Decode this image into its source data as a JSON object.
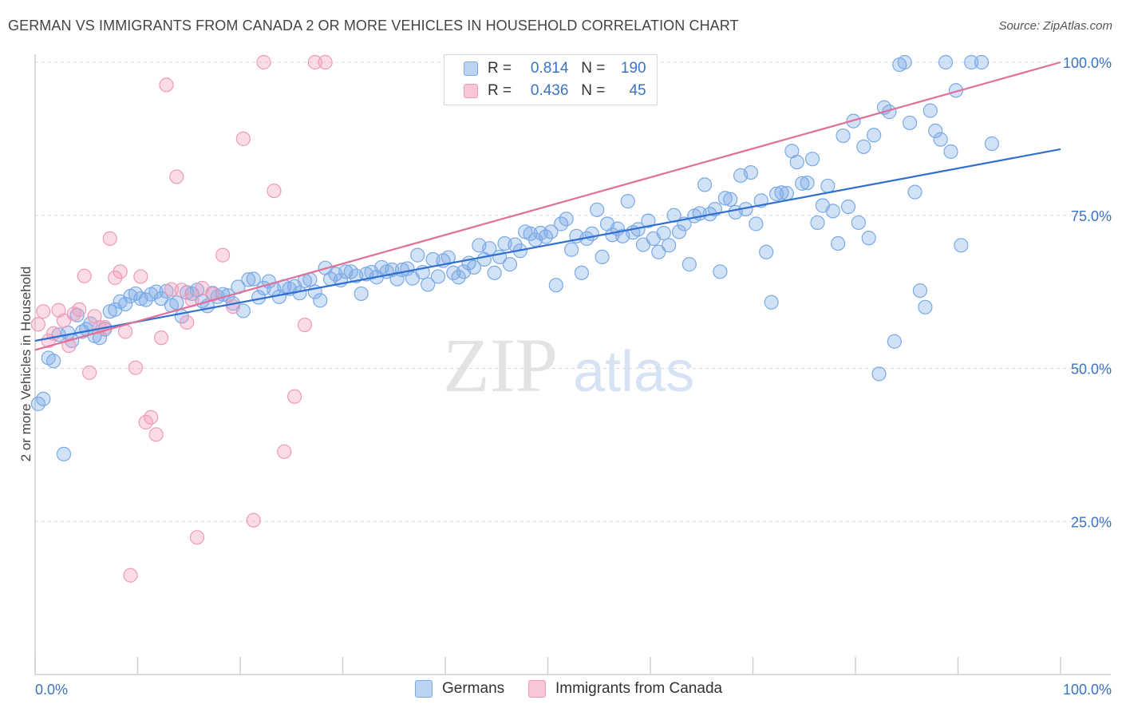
{
  "title": "GERMAN VS IMMIGRANTS FROM CANADA 2 OR MORE VEHICLES IN HOUSEHOLD CORRELATION CHART",
  "source": "Source: ZipAtlas.com",
  "watermark": {
    "zip": "ZIP",
    "atlas": "atlas"
  },
  "legend": {
    "r_label": "R =",
    "n_label": "N =",
    "rows": [
      {
        "r": "0.814",
        "n": "190"
      },
      {
        "r": "0.436",
        "n": "45"
      }
    ]
  },
  "bottom_legend": [
    "Germans",
    "Immigrants from Canada"
  ],
  "chart_data": {
    "type": "scatter",
    "title": "GERMAN VS IMMIGRANTS FROM CANADA 2 OR MORE VEHICLES IN HOUSEHOLD CORRELATION CHART",
    "ylabel": "2 or more Vehicles in Household",
    "xlabel": "",
    "xlim": [
      0,
      100
    ],
    "ylim": [
      0,
      100
    ],
    "x_tick_labels": [
      "0.0%",
      "100.0%"
    ],
    "y_tick_values": [
      25,
      50,
      75,
      100
    ],
    "y_tick_labels": [
      "25.0%",
      "50.0%",
      "75.0%",
      "100.0%"
    ],
    "grid": "horizontal dashed",
    "colors": {
      "germans": "#7aaae6",
      "canada": "#f09ab8",
      "germans_line": "#2f6fcf",
      "canada_line": "#e0709a"
    },
    "series": [
      {
        "name": "Germans",
        "r": 0.814,
        "n": 190,
        "trend": [
          [
            0,
            54.5
          ],
          [
            100,
            85.8
          ]
        ],
        "points": [
          [
            0.3,
            44.2
          ],
          [
            0.8,
            45.0
          ],
          [
            1.3,
            51.7
          ],
          [
            1.8,
            51.2
          ],
          [
            2.3,
            55.5
          ],
          [
            2.8,
            36.0
          ],
          [
            3.2,
            55.8
          ],
          [
            3.6,
            54.5
          ],
          [
            4.1,
            58.7
          ],
          [
            4.6,
            56.0
          ],
          [
            5.0,
            56.4
          ],
          [
            5.4,
            57.3
          ],
          [
            5.8,
            55.3
          ],
          [
            6.3,
            55.0
          ],
          [
            6.8,
            56.4
          ],
          [
            7.3,
            59.3
          ],
          [
            7.8,
            59.6
          ],
          [
            8.3,
            60.9
          ],
          [
            8.8,
            60.5
          ],
          [
            9.3,
            61.8
          ],
          [
            9.8,
            62.2
          ],
          [
            10.3,
            61.4
          ],
          [
            10.8,
            61.2
          ],
          [
            11.3,
            62.1
          ],
          [
            11.8,
            62.5
          ],
          [
            12.3,
            61.4
          ],
          [
            12.8,
            62.6
          ],
          [
            13.3,
            60.3
          ],
          [
            13.8,
            60.7
          ],
          [
            14.3,
            58.5
          ],
          [
            14.8,
            62.4
          ],
          [
            15.3,
            62.2
          ],
          [
            15.8,
            62.8
          ],
          [
            16.3,
            61.0
          ],
          [
            16.8,
            60.2
          ],
          [
            17.3,
            62.3
          ],
          [
            17.8,
            61.7
          ],
          [
            18.3,
            62.1
          ],
          [
            18.8,
            61.9
          ],
          [
            19.3,
            60.6
          ],
          [
            19.8,
            63.3
          ],
          [
            20.3,
            59.4
          ],
          [
            20.8,
            64.5
          ],
          [
            21.3,
            64.6
          ],
          [
            21.8,
            61.6
          ],
          [
            22.3,
            63.1
          ],
          [
            22.8,
            64.2
          ],
          [
            23.3,
            62.9
          ],
          [
            23.8,
            61.7
          ],
          [
            24.3,
            63.4
          ],
          [
            24.8,
            63.0
          ],
          [
            25.3,
            63.4
          ],
          [
            25.8,
            62.3
          ],
          [
            26.3,
            64.3
          ],
          [
            26.8,
            64.5
          ],
          [
            27.3,
            62.5
          ],
          [
            27.8,
            61.1
          ],
          [
            28.3,
            66.4
          ],
          [
            28.8,
            64.6
          ],
          [
            29.3,
            65.4
          ],
          [
            29.8,
            64.4
          ],
          [
            30.3,
            65.8
          ],
          [
            30.8,
            65.8
          ],
          [
            31.3,
            65.1
          ],
          [
            31.8,
            62.2
          ],
          [
            32.3,
            65.4
          ],
          [
            32.8,
            65.7
          ],
          [
            33.3,
            64.9
          ],
          [
            33.8,
            66.5
          ],
          [
            34.3,
            65.8
          ],
          [
            34.8,
            66.1
          ],
          [
            35.3,
            64.6
          ],
          [
            35.8,
            66.1
          ],
          [
            36.3,
            66.3
          ],
          [
            36.8,
            64.7
          ],
          [
            37.3,
            68.5
          ],
          [
            37.8,
            65.7
          ],
          [
            38.3,
            63.7
          ],
          [
            38.8,
            67.8
          ],
          [
            39.3,
            65.0
          ],
          [
            39.8,
            67.6
          ],
          [
            40.3,
            68.1
          ],
          [
            40.8,
            65.6
          ],
          [
            41.3,
            64.9
          ],
          [
            41.8,
            65.8
          ],
          [
            42.3,
            67.2
          ],
          [
            42.8,
            66.5
          ],
          [
            43.3,
            70.1
          ],
          [
            43.8,
            67.8
          ],
          [
            44.3,
            69.6
          ],
          [
            44.8,
            65.6
          ],
          [
            45.3,
            68.2
          ],
          [
            45.8,
            70.4
          ],
          [
            46.3,
            67.0
          ],
          [
            46.8,
            70.2
          ],
          [
            47.3,
            69.2
          ],
          [
            47.8,
            72.3
          ],
          [
            48.3,
            72.0
          ],
          [
            48.8,
            71.0
          ],
          [
            49.3,
            72.1
          ],
          [
            49.8,
            71.5
          ],
          [
            50.3,
            72.3
          ],
          [
            50.8,
            63.6
          ],
          [
            51.3,
            73.6
          ],
          [
            51.8,
            74.4
          ],
          [
            52.3,
            69.4
          ],
          [
            52.8,
            71.6
          ],
          [
            53.3,
            65.6
          ],
          [
            53.8,
            71.2
          ],
          [
            54.3,
            72.0
          ],
          [
            54.8,
            75.9
          ],
          [
            55.3,
            68.2
          ],
          [
            55.8,
            73.6
          ],
          [
            56.3,
            71.8
          ],
          [
            56.8,
            72.8
          ],
          [
            57.3,
            71.6
          ],
          [
            57.8,
            77.3
          ],
          [
            58.3,
            72.2
          ],
          [
            58.8,
            72.7
          ],
          [
            59.3,
            70.2
          ],
          [
            59.8,
            74.1
          ],
          [
            60.3,
            71.2
          ],
          [
            60.8,
            69.0
          ],
          [
            61.3,
            72.1
          ],
          [
            61.8,
            70.1
          ],
          [
            62.3,
            75.0
          ],
          [
            62.8,
            72.3
          ],
          [
            63.3,
            73.6
          ],
          [
            63.8,
            67.0
          ],
          [
            64.3,
            74.9
          ],
          [
            64.8,
            75.3
          ],
          [
            65.3,
            80.0
          ],
          [
            65.8,
            75.2
          ],
          [
            66.3,
            76.0
          ],
          [
            66.8,
            65.8
          ],
          [
            67.3,
            77.8
          ],
          [
            67.8,
            77.6
          ],
          [
            68.3,
            75.5
          ],
          [
            68.8,
            81.5
          ],
          [
            69.3,
            76.0
          ],
          [
            69.8,
            82.0
          ],
          [
            70.3,
            73.6
          ],
          [
            70.8,
            77.4
          ],
          [
            71.3,
            69.0
          ],
          [
            71.8,
            60.8
          ],
          [
            72.3,
            78.5
          ],
          [
            72.8,
            78.7
          ],
          [
            73.3,
            78.6
          ],
          [
            73.8,
            85.5
          ],
          [
            74.3,
            83.7
          ],
          [
            74.8,
            80.2
          ],
          [
            75.3,
            80.3
          ],
          [
            75.8,
            84.2
          ],
          [
            76.3,
            73.8
          ],
          [
            76.8,
            76.6
          ],
          [
            77.3,
            79.8
          ],
          [
            77.8,
            75.7
          ],
          [
            78.3,
            70.4
          ],
          [
            78.8,
            88.0
          ],
          [
            79.3,
            76.4
          ],
          [
            79.8,
            90.4
          ],
          [
            80.3,
            73.8
          ],
          [
            80.8,
            86.2
          ],
          [
            81.3,
            71.3
          ],
          [
            81.8,
            88.1
          ],
          [
            82.3,
            49.1
          ],
          [
            82.8,
            92.6
          ],
          [
            83.3,
            91.9
          ],
          [
            83.8,
            54.4
          ],
          [
            84.3,
            99.6
          ],
          [
            84.8,
            100.0
          ],
          [
            85.3,
            90.1
          ],
          [
            85.8,
            78.8
          ],
          [
            86.3,
            62.7
          ],
          [
            86.8,
            60.0
          ],
          [
            87.3,
            92.1
          ],
          [
            87.8,
            88.8
          ],
          [
            88.3,
            87.4
          ],
          [
            88.8,
            100.0
          ],
          [
            89.3,
            85.4
          ],
          [
            89.8,
            95.4
          ],
          [
            90.3,
            70.1
          ],
          [
            91.3,
            100.0
          ],
          [
            92.3,
            100.0
          ],
          [
            93.3,
            86.7
          ]
        ]
      },
      {
        "name": "Immigrants from Canada",
        "r": 0.436,
        "n": 45,
        "trend": [
          [
            0,
            53.0
          ],
          [
            100,
            100.0
          ]
        ],
        "points": [
          [
            0.3,
            57.2
          ],
          [
            0.8,
            59.3
          ],
          [
            1.3,
            54.5
          ],
          [
            1.8,
            55.7
          ],
          [
            2.3,
            59.5
          ],
          [
            2.8,
            57.8
          ],
          [
            3.3,
            53.7
          ],
          [
            3.8,
            58.9
          ],
          [
            4.3,
            59.6
          ],
          [
            4.8,
            65.1
          ],
          [
            5.3,
            49.3
          ],
          [
            5.8,
            58.5
          ],
          [
            6.3,
            56.7
          ],
          [
            6.8,
            56.7
          ],
          [
            7.3,
            71.2
          ],
          [
            7.8,
            64.8
          ],
          [
            8.3,
            65.8
          ],
          [
            8.8,
            56.0
          ],
          [
            9.3,
            16.2
          ],
          [
            9.8,
            50.1
          ],
          [
            10.3,
            65.0
          ],
          [
            10.8,
            41.2
          ],
          [
            11.3,
            42.0
          ],
          [
            11.8,
            39.2
          ],
          [
            12.3,
            55.0
          ],
          [
            12.8,
            96.3
          ],
          [
            13.3,
            62.9
          ],
          [
            13.8,
            81.3
          ],
          [
            14.3,
            62.8
          ],
          [
            14.8,
            57.5
          ],
          [
            15.3,
            61.2
          ],
          [
            15.8,
            22.4
          ],
          [
            16.3,
            63.1
          ],
          [
            17.3,
            62.1
          ],
          [
            18.3,
            68.5
          ],
          [
            19.3,
            60.1
          ],
          [
            20.3,
            87.5
          ],
          [
            21.3,
            25.2
          ],
          [
            22.3,
            100.0
          ],
          [
            23.3,
            79.0
          ],
          [
            24.3,
            36.4
          ],
          [
            25.3,
            45.4
          ],
          [
            26.3,
            57.1
          ],
          [
            27.3,
            100.0
          ],
          [
            28.3,
            100.0
          ]
        ]
      }
    ]
  }
}
